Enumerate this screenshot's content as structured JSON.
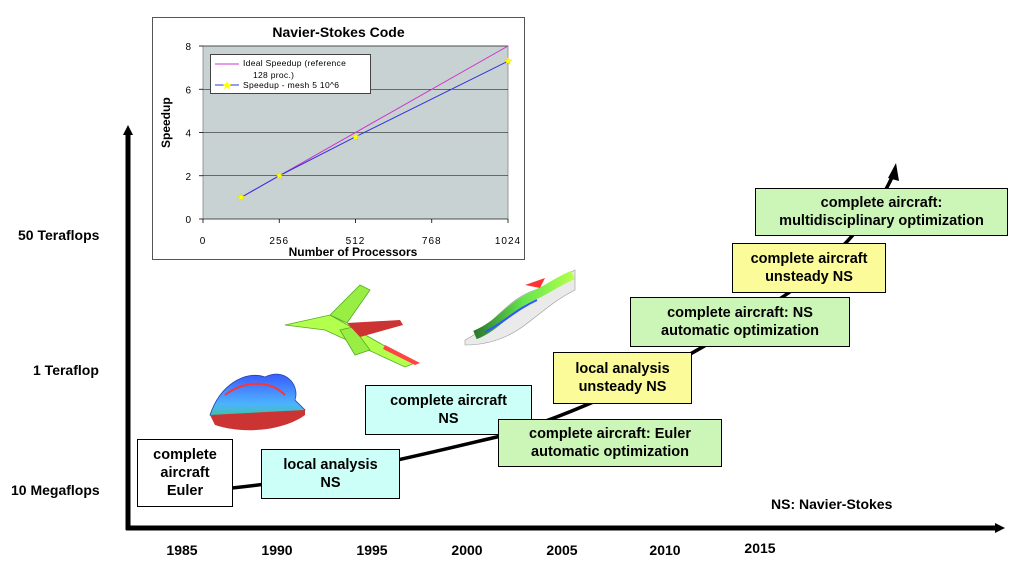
{
  "y_axis_labels": {
    "top": "50 Teraflops",
    "middle": "1 Teraflop",
    "bottom": "10 Megaflops"
  },
  "x_axis_years": [
    "1985",
    "1990",
    "1995",
    "2000",
    "2005",
    "2010",
    "2015"
  ],
  "stages": {
    "s1": [
      "complete",
      "aircraft",
      "Euler"
    ],
    "s2": [
      "local analysis",
      "NS"
    ],
    "s3": [
      "complete aircraft",
      "NS"
    ],
    "s4": [
      "complete aircraft: Euler",
      "automatic optimization"
    ],
    "s5": [
      "local analysis",
      "unsteady NS"
    ],
    "s6": [
      "complete aircraft: NS",
      "automatic optimization"
    ],
    "s7": [
      "complete aircraft",
      "unsteady NS"
    ],
    "s8": [
      "complete aircraft:",
      "multidisciplinary  optimization"
    ]
  },
  "colors": {
    "white": "#ffffff",
    "cyan": "#ccfff8",
    "green": "#ccf5b8",
    "yellow": "#fbfb9a",
    "plot_bg": "#c8d2d2"
  },
  "legend_note": "NS:  Navier-Stokes",
  "chart_data": {
    "type": "line",
    "title": "Navier-Stokes Code",
    "xlabel": "Number of Processors",
    "ylabel": "Speedup",
    "xlim": [
      0,
      1024
    ],
    "ylim": [
      0,
      8
    ],
    "x_ticks": [
      "0",
      "256",
      "512",
      "768",
      "1024"
    ],
    "y_ticks": [
      "0",
      "2",
      "4",
      "6",
      "8"
    ],
    "grid": true,
    "legend_position": "top-left",
    "series": [
      {
        "name_line1": "Ideal Speedup (reference",
        "name_line2": "128 proc.)",
        "color": "#cc33cc",
        "x": [
          128,
          1024
        ],
        "y": [
          1,
          8
        ]
      },
      {
        "name_line1": "Speedup - mesh 5 10^6",
        "color": "#3333dd",
        "marker_color": "#ffff00",
        "x": [
          128,
          256,
          512,
          1024
        ],
        "y": [
          1,
          2,
          3.8,
          7.3
        ]
      }
    ]
  }
}
